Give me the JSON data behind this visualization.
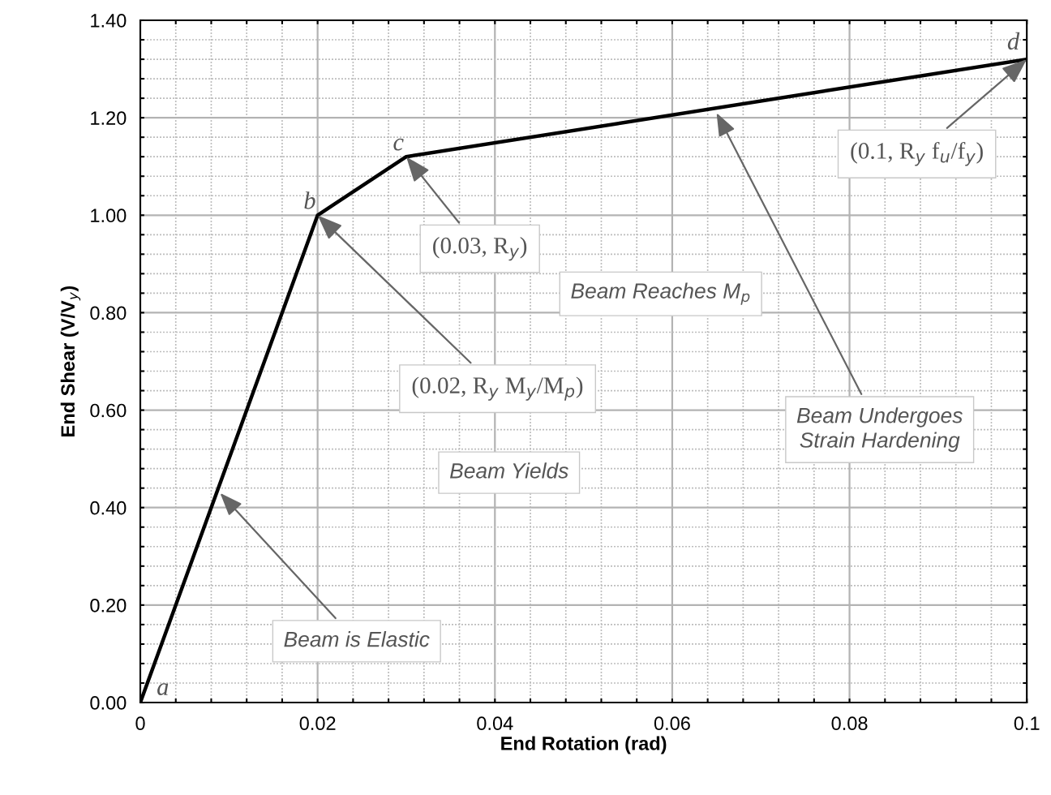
{
  "chart_data": {
    "type": "line",
    "xlabel": "End Rotation (rad)",
    "ylabel": "End Shear (V/V$_{y}$)",
    "x": [
      0,
      0.02,
      0.03,
      0.1
    ],
    "series": [
      {
        "color": "#000000",
        "values": [
          0,
          1.0,
          1.12,
          1.32
        ]
      }
    ],
    "xlim": [
      0,
      0.1
    ],
    "ylim": [
      0,
      1.4
    ],
    "xticks": [
      0,
      {
        "value": 0.004,
        "label": null
      },
      {
        "value": 0.008,
        "label": null
      },
      {
        "value": 0.012,
        "label": null
      },
      {
        "value": 0.016,
        "label": null
      },
      0.02,
      {
        "value": 0.024,
        "label": null
      },
      {
        "value": 0.028,
        "label": null
      },
      {
        "value": 0.032,
        "label": null
      },
      {
        "value": 0.036,
        "label": null
      },
      0.04,
      {
        "value": 0.044,
        "label": null
      },
      {
        "value": 0.048,
        "label": null
      },
      {
        "value": 0.052,
        "label": null
      },
      {
        "value": 0.056,
        "label": null
      },
      0.06,
      {
        "value": 0.064,
        "label": null
      },
      {
        "value": 0.068,
        "label": null
      },
      {
        "value": 0.072,
        "label": null
      },
      {
        "value": 0.076,
        "label": null
      },
      0.08,
      {
        "value": 0.084,
        "label": null
      },
      {
        "value": 0.088,
        "label": null
      },
      {
        "value": 0.092,
        "label": null
      },
      {
        "value": 0.096,
        "label": null
      },
      0.1
    ],
    "yticks": [
      {
        "value": 0,
        "label": "0.00"
      },
      {
        "value": 0.04,
        "label": null
      },
      {
        "value": 0.08,
        "label": null
      },
      {
        "value": 0.12,
        "label": null
      },
      {
        "value": 0.16,
        "label": null
      },
      {
        "value": 0.2,
        "label": "0.20"
      },
      {
        "value": 0.24,
        "label": null
      },
      {
        "value": 0.28,
        "label": null
      },
      {
        "value": 0.32,
        "label": null
      },
      {
        "value": 0.36,
        "label": null
      },
      {
        "value": 0.4,
        "label": "0.40"
      },
      {
        "value": 0.44,
        "label": null
      },
      {
        "value": 0.48,
        "label": null
      },
      {
        "value": 0.52,
        "label": null
      },
      {
        "value": 0.56,
        "label": null
      },
      {
        "value": 0.6,
        "label": "0.60"
      },
      {
        "value": 0.64,
        "label": null
      },
      {
        "value": 0.68,
        "label": null
      },
      {
        "value": 0.72,
        "label": null
      },
      {
        "value": 0.76,
        "label": null
      },
      {
        "value": 0.8,
        "label": "0.80"
      },
      {
        "value": 0.84,
        "label": null
      },
      {
        "value": 0.88,
        "label": null
      },
      {
        "value": 0.92,
        "label": null
      },
      {
        "value": 0.96,
        "label": null
      },
      {
        "value": 1.0,
        "label": "1.00"
      },
      {
        "value": 1.04,
        "label": null
      },
      {
        "value": 1.08,
        "label": null
      },
      {
        "value": 1.12,
        "label": null
      },
      {
        "value": 1.16,
        "label": null
      },
      {
        "value": 1.2,
        "label": "1.20"
      },
      {
        "value": 1.24,
        "label": null
      },
      {
        "value": 1.28,
        "label": null
      },
      {
        "value": 1.32,
        "label": null
      },
      {
        "value": 1.36,
        "label": null
      },
      {
        "value": 1.4,
        "label": "1.40"
      }
    ],
    "grid": true,
    "marker": "none",
    "line_style": "solid",
    "annotations": [
      {
        "text": "Beam is Elastic",
        "x": 0.009,
        "y": 0.43
      },
      {
        "text": "(0.02, R$_{y}$ M$_{y}$/M$_{p}$)",
        "x": 0.02,
        "y": 1.0
      },
      "Beam Yields",
      {
        "text": "(0.03, R$_{y}$)",
        "x": 0.03,
        "y": 1.12
      },
      "Beam Reaches M$_{p}$",
      {
        "text": "Beam Undergoes\nStrain Hardening",
        "x": 0.065,
        "y": 1.21
      },
      {
        "text": "(0.1, R$_{y}$ f$_{u}$/f$_{y}$)",
        "x": 0.1,
        "y": 1.32
      },
      {
        "text": "a",
        "x": 0,
        "y": 0
      },
      {
        "text": "b",
        "x": 0.02,
        "y": 1.0
      },
      {
        "text": "c",
        "x": 0.03,
        "y": 1.12
      },
      {
        "text": "d",
        "x": 0.1,
        "y": 1.32
      }
    ]
  }
}
